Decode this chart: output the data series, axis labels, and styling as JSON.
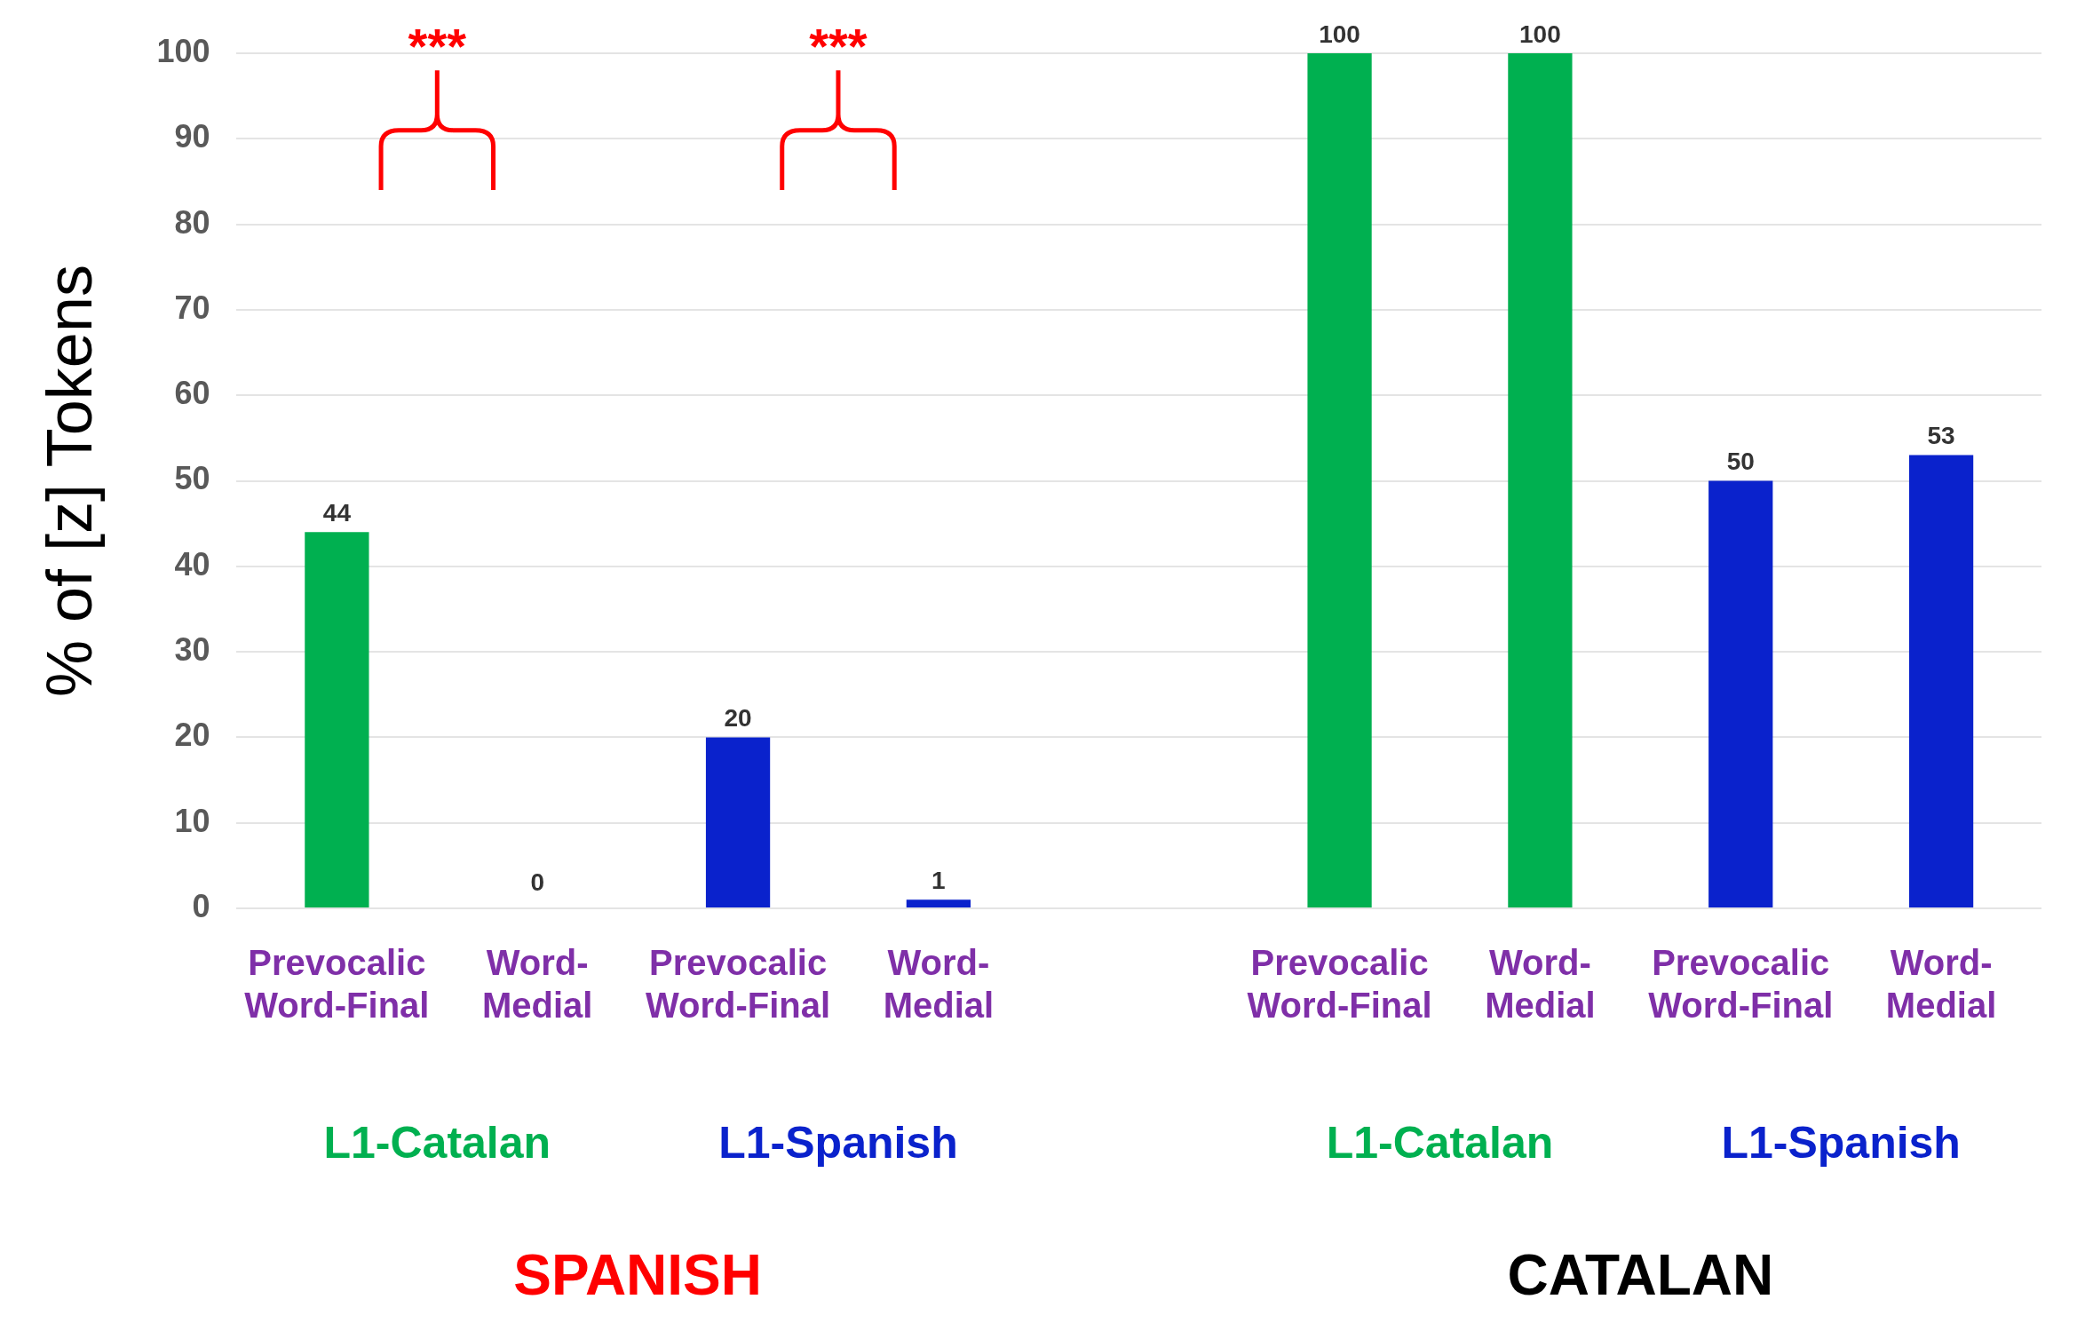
{
  "chart_data": {
    "type": "bar",
    "ylabel": "% of [z] Tokens",
    "categories": [
      "Prevocalic\nWord-Final",
      "Word-\nMedial",
      "Prevocalic\nWord-Final",
      "Word-\nMedial",
      null,
      "Prevocalic\nWord-Final",
      "Word-\nMedial",
      "Prevocalic\nWord-Final",
      "Word-\nMedial"
    ],
    "series": [
      {
        "name": "L1-Catalan",
        "color": "#00b050",
        "values": [
          44,
          0,
          null,
          null,
          null,
          100,
          100,
          null,
          null
        ]
      },
      {
        "name": "L1-Spanish",
        "color": "#0a22cc",
        "values": [
          null,
          null,
          20,
          1,
          null,
          null,
          null,
          50,
          53
        ]
      }
    ],
    "ylim": [
      0,
      100
    ],
    "yticks": [
      0,
      10,
      20,
      30,
      40,
      50,
      60,
      70,
      80,
      90,
      100
    ],
    "grid": "y",
    "legend": false,
    "data_labels": true,
    "annotations": [
      "SPANISH",
      "CATALAN",
      "***",
      "***"
    ]
  }
}
